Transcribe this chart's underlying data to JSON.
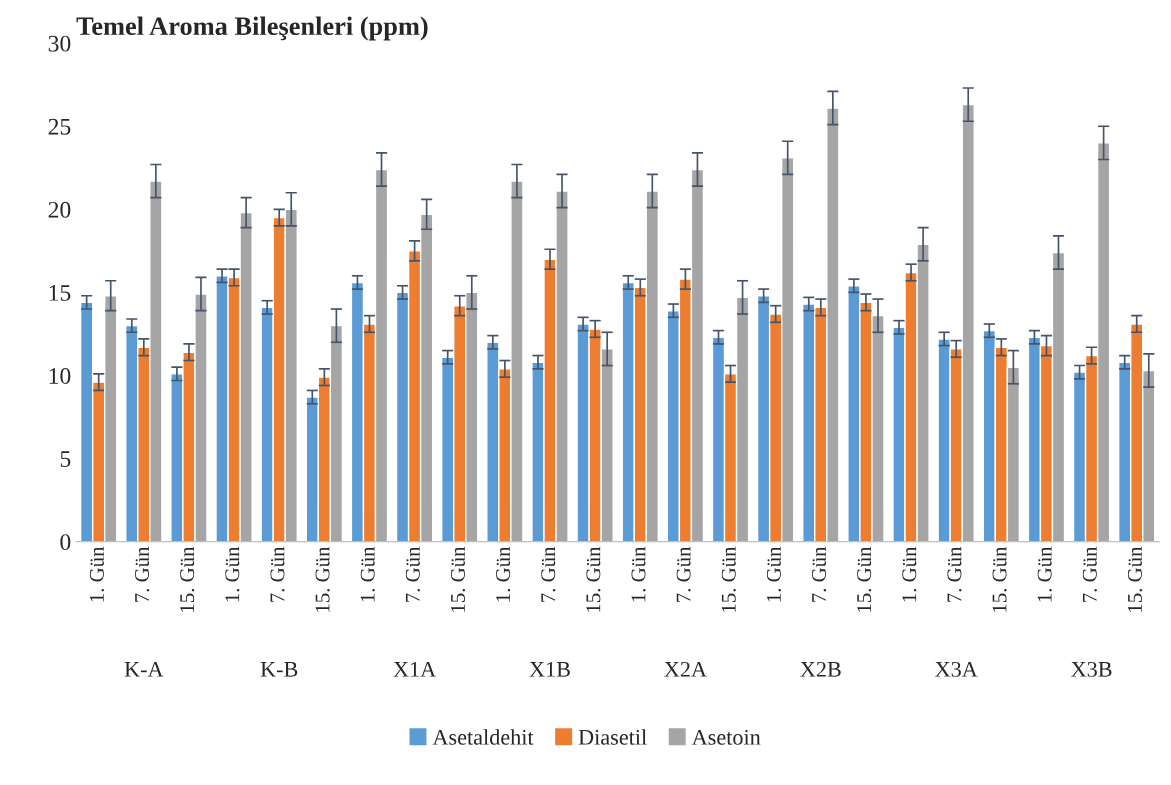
{
  "chart_data": {
    "type": "bar",
    "title": "Temel Aroma Bileşenleri (ppm)",
    "categories": [
      "1. Gün",
      "7. Gün",
      "15. Gün",
      "1. Gün",
      "7. Gün",
      "15. Gün",
      "1. Gün",
      "7. Gün",
      "15. Gün",
      "1. Gün",
      "7. Gün",
      "15. Gün",
      "1. Gün",
      "7. Gün",
      "15. Gün",
      "1. Gün",
      "7. Gün",
      "15. Gün",
      "1. Gün",
      "7. Gün",
      "15. Gün",
      "1. Gün",
      "7. Gün",
      "15. Gün"
    ],
    "series": [
      {
        "name": "Asetaldehit",
        "color": "#5b9bd5",
        "values": [
          14.4,
          13.0,
          10.1,
          16.0,
          14.1,
          8.7,
          15.6,
          15.0,
          11.1,
          12.0,
          10.8,
          13.1,
          15.6,
          13.9,
          12.3,
          14.8,
          14.3,
          15.4,
          12.9,
          12.2,
          12.7,
          12.3,
          10.2,
          10.8
        ],
        "errors": [
          0.4,
          0.4,
          0.4,
          0.4,
          0.4,
          0.4,
          0.4,
          0.4,
          0.4,
          0.4,
          0.4,
          0.4,
          0.4,
          0.4,
          0.4,
          0.4,
          0.4,
          0.4,
          0.4,
          0.4,
          0.4,
          0.4,
          0.4,
          0.4
        ]
      },
      {
        "name": "Diasetil",
        "color": "#ed7d31",
        "values": [
          9.6,
          11.7,
          11.4,
          15.9,
          19.5,
          9.9,
          13.1,
          17.5,
          14.2,
          10.4,
          17.0,
          12.8,
          15.3,
          15.8,
          10.1,
          13.7,
          14.1,
          14.4,
          16.2,
          11.6,
          11.7,
          11.8,
          11.2,
          13.1
        ],
        "errors": [
          0.5,
          0.5,
          0.5,
          0.5,
          0.5,
          0.5,
          0.5,
          0.6,
          0.6,
          0.5,
          0.6,
          0.5,
          0.5,
          0.6,
          0.5,
          0.5,
          0.5,
          0.5,
          0.5,
          0.5,
          0.5,
          0.6,
          0.5,
          0.5
        ]
      },
      {
        "name": "Asetoin",
        "color": "#a5a5a5",
        "values": [
          14.8,
          21.7,
          14.9,
          19.8,
          20.0,
          13.0,
          22.4,
          19.7,
          15.0,
          21.7,
          21.1,
          11.6,
          21.1,
          22.4,
          14.7,
          23.1,
          26.1,
          13.6,
          17.9,
          26.3,
          10.5,
          17.4,
          24.0,
          10.3
        ],
        "errors": [
          0.9,
          1.0,
          1.0,
          0.9,
          1.0,
          1.0,
          1.0,
          0.9,
          1.0,
          1.0,
          1.0,
          1.0,
          1.0,
          1.0,
          1.0,
          1.0,
          1.0,
          1.0,
          1.0,
          1.0,
          1.0,
          1.0,
          1.0,
          1.0
        ]
      }
    ],
    "annotations": [
      "K-A",
      "K-B",
      "X1A",
      "X1B",
      "X2A",
      "X2B",
      "X3A",
      "X3B"
    ],
    "ylim": [
      0,
      30
    ],
    "yticks": [
      0,
      5,
      10,
      15,
      20,
      25,
      30
    ],
    "grid": false,
    "legend": "bottom"
  }
}
